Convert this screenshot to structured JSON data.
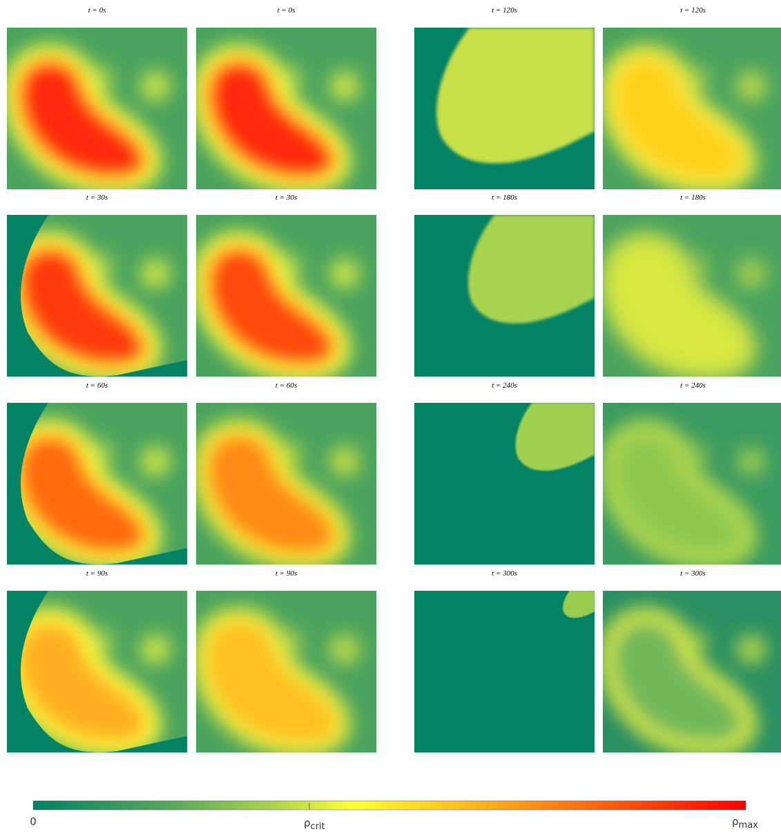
{
  "panels": [
    {
      "title": "t = 0s"
    },
    {
      "title": "t = 0s"
    },
    {
      "title": "t = 120s"
    },
    {
      "title": "t = 120s"
    },
    {
      "title": "t = 30s"
    },
    {
      "title": "t = 30s"
    },
    {
      "title": "t = 180s"
    },
    {
      "title": "t = 180s"
    },
    {
      "title": "t = 60s"
    },
    {
      "title": "t = 60s"
    },
    {
      "title": "t = 240s"
    },
    {
      "title": "t = 240s"
    },
    {
      "title": "t = 90s"
    },
    {
      "title": "t = 90s"
    },
    {
      "title": "t = 300s"
    },
    {
      "title": "t = 300s"
    }
  ],
  "colorbar": {
    "min_label": "0",
    "crit_label": {
      "symbol": "ρ",
      "subscript": "crit"
    },
    "max_label": {
      "symbol": "ρ",
      "subscript": "max"
    }
  }
}
